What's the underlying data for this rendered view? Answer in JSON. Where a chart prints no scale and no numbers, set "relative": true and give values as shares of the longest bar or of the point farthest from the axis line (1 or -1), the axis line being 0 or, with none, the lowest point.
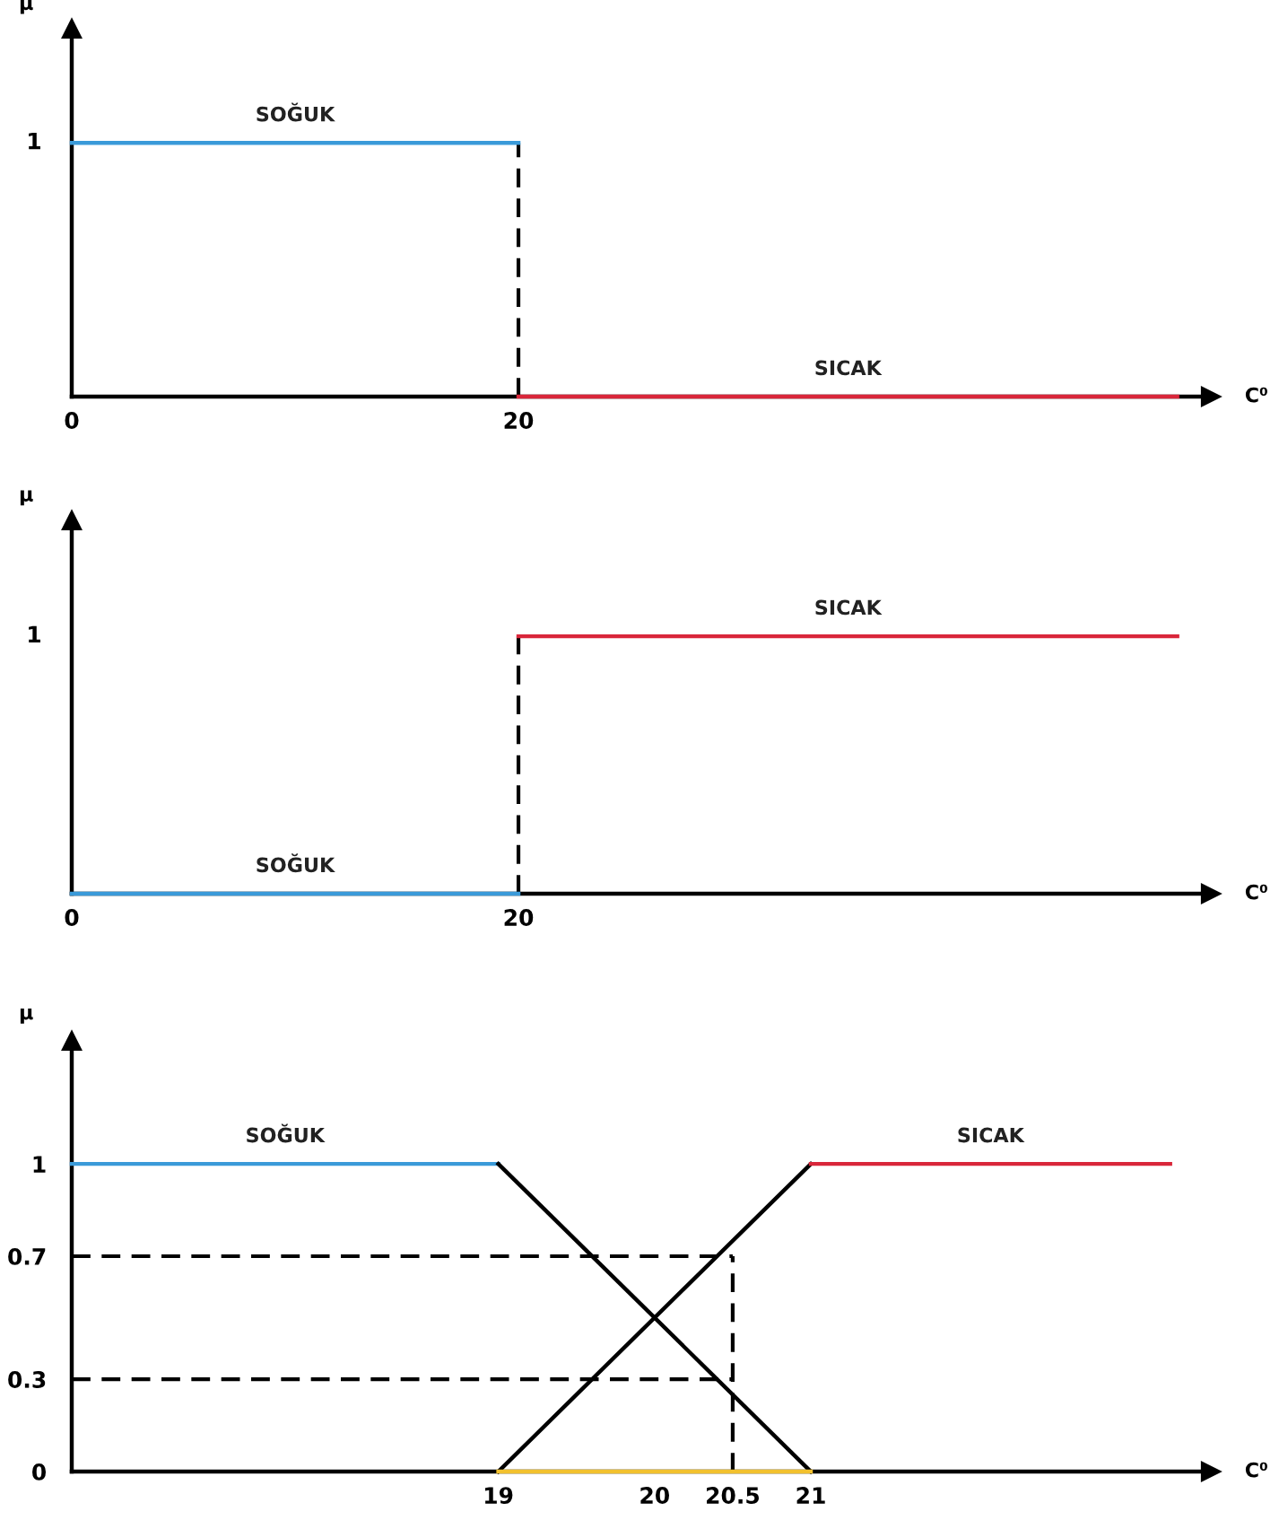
{
  "chart_data": [
    {
      "type": "line",
      "xlabel": "C⁰",
      "ylabel": "μ",
      "xlim": [
        0,
        51
      ],
      "relative": true,
      "xticks": [
        0,
        20
      ],
      "annotations": [
        {
          "text": "1",
          "x": 0,
          "y": 1
        }
      ],
      "series": [
        {
          "name": "SOĞUK",
          "color": "#3a9ad9",
          "x": [
            0,
            20
          ],
          "values": [
            1,
            1
          ],
          "line_style": "solid"
        },
        {
          "color": "#000000",
          "x": [
            20,
            20
          ],
          "values": [
            0,
            1
          ],
          "line_style": "dashed"
        },
        {
          "name": "SICAK",
          "color": "#d9263a",
          "x": [
            20,
            49.5
          ],
          "values": [
            0,
            0
          ],
          "line_style": "solid"
        }
      ]
    },
    {
      "type": "line",
      "xlabel": "C⁰",
      "ylabel": "μ",
      "xlim": [
        0,
        51
      ],
      "relative": true,
      "xticks": [
        0,
        20
      ],
      "annotations": [
        "1"
      ],
      "series": [
        {
          "name": "SOĞUK",
          "color": "#3a9ad9",
          "x": [
            0,
            20
          ],
          "values": [
            0,
            0
          ],
          "line_style": "solid"
        },
        {
          "color": "#000000",
          "x": [
            20,
            20
          ],
          "values": [
            0,
            1
          ],
          "line_style": "dashed"
        },
        {
          "name": "SICAK",
          "color": "#d9263a",
          "x": [
            20,
            49.5
          ],
          "values": [
            1,
            1
          ],
          "line_style": "solid"
        }
      ]
    },
    {
      "type": "line",
      "xlabel": "C⁰",
      "ylabel": "μ",
      "xlim": [
        16.27,
        23.56
      ],
      "ylim": [
        0,
        1.4
      ],
      "xticks": [
        19,
        20,
        20.5,
        21
      ],
      "yticks": [
        0,
        0.3,
        0.7,
        1
      ],
      "series": [
        {
          "name": "SOĞUK",
          "color": "#3a9ad9",
          "x": [
            16.27,
            19
          ],
          "values": [
            1,
            1
          ],
          "line_style": "solid"
        },
        {
          "color": "#000000",
          "x": [
            19,
            21
          ],
          "values": [
            1,
            0
          ],
          "line_style": "solid"
        },
        {
          "color": "#000000",
          "x": [
            19,
            21
          ],
          "values": [
            0,
            1
          ],
          "line_style": "solid"
        },
        {
          "color": "#f2c12e",
          "x": [
            19,
            21
          ],
          "values": [
            0,
            0
          ],
          "line_style": "solid"
        },
        {
          "color": "#000000",
          "x": [
            16.27,
            20.5
          ],
          "values": [
            0.7,
            0.7
          ],
          "line_style": "dashed"
        },
        {
          "color": "#000000",
          "x": [
            16.27,
            20.5
          ],
          "values": [
            0.3,
            0.3
          ],
          "line_style": "dashed"
        },
        {
          "color": "#000000",
          "x": [
            20.5,
            20.5
          ],
          "values": [
            0,
            0.7
          ],
          "line_style": "dashed"
        },
        {
          "name": "SICAK",
          "color": "#d9263a",
          "x": [
            21,
            23.3
          ],
          "values": [
            1,
            1
          ],
          "line_style": "solid"
        }
      ]
    }
  ]
}
